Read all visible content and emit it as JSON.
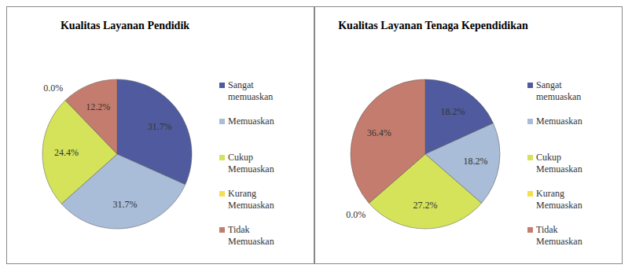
{
  "chart_data": [
    {
      "type": "pie",
      "title": "Kualitas Layanan Pendidik",
      "categories": [
        "Sangat memuaskan",
        "Memuaskan",
        "Cukup Memuaskan",
        "Kurang Memuaskan",
        "Tidak Memuaskan"
      ],
      "values": [
        31.7,
        31.7,
        24.4,
        0.0,
        12.2
      ],
      "value_labels": [
        "31.7%",
        "31.7%",
        "24.4%",
        "0.0%",
        "12.2%"
      ],
      "colors": [
        "#4f5b9e",
        "#a9bcd8",
        "#d4e35a",
        "#f3e04e",
        "#c47c6e"
      ],
      "data_labels": true,
      "legend": "right"
    },
    {
      "type": "pie",
      "title": "Kualitas Layanan Tenaga Kependidikan",
      "categories": [
        "Sangat memuaskan",
        "Memuaskan",
        "Cukup Memuaskan",
        "Kurang Memuaskan",
        "Tidak Memuaskan"
      ],
      "values": [
        18.2,
        18.2,
        27.2,
        0.0,
        36.4
      ],
      "value_labels": [
        "18.2%",
        "18.2%",
        "27.2%",
        "0.0%",
        "36.4%"
      ],
      "colors": [
        "#4f5b9e",
        "#a9bcd8",
        "#d4e35a",
        "#f3e04e",
        "#c47c6e"
      ],
      "data_labels": true,
      "legend": "right"
    }
  ]
}
